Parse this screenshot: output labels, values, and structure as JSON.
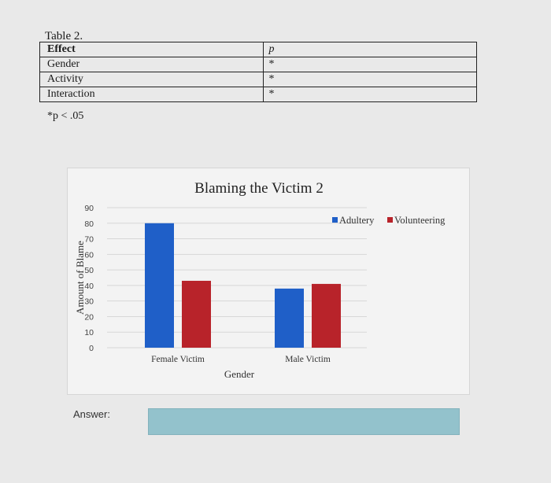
{
  "table": {
    "caption": "Table 2.",
    "header": {
      "effect": "Effect",
      "p": "p"
    },
    "rows": [
      {
        "effect": "Gender",
        "p": "*"
      },
      {
        "effect": "Activity",
        "p": "*"
      },
      {
        "effect": "Interaction",
        "p": "*"
      }
    ],
    "note": "*p < .05"
  },
  "chart_data": {
    "type": "bar",
    "title": "Blaming the Victim 2",
    "xlabel": "Gender",
    "ylabel": "Amount of Blame",
    "categories": [
      "Female Victim",
      "Male Victim"
    ],
    "series": [
      {
        "name": "Adultery",
        "values": [
          80,
          38
        ],
        "color": "#1f5fc8"
      },
      {
        "name": "Volunteering",
        "values": [
          43,
          41
        ],
        "color": "#b8232a"
      }
    ],
    "ylim": [
      0,
      90
    ],
    "yticks": [
      "0",
      "10",
      "20",
      "30",
      "40",
      "50",
      "60",
      "70",
      "80",
      "90"
    ],
    "legend_position": "top-right",
    "grid": true
  },
  "answer": {
    "label": "Answer:",
    "value": ""
  }
}
